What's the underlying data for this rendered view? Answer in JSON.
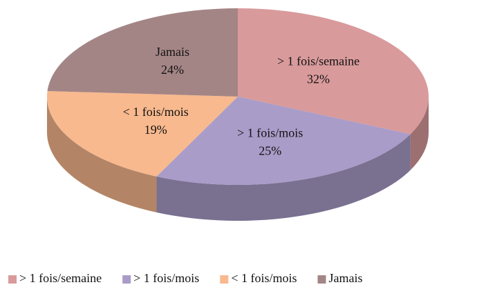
{
  "chart_data": {
    "type": "pie",
    "categories": [
      "> 1 fois/semaine",
      "> 1 fois/mois",
      "< 1 fois/mois",
      "Jamais"
    ],
    "values": [
      32,
      25,
      19,
      24
    ],
    "value_labels": [
      "32%",
      "25%",
      "19%",
      "24%"
    ],
    "colors": [
      "#d99a9b",
      "#a99cc8",
      "#f8b98e",
      "#a48585"
    ],
    "legend": "bottom"
  }
}
